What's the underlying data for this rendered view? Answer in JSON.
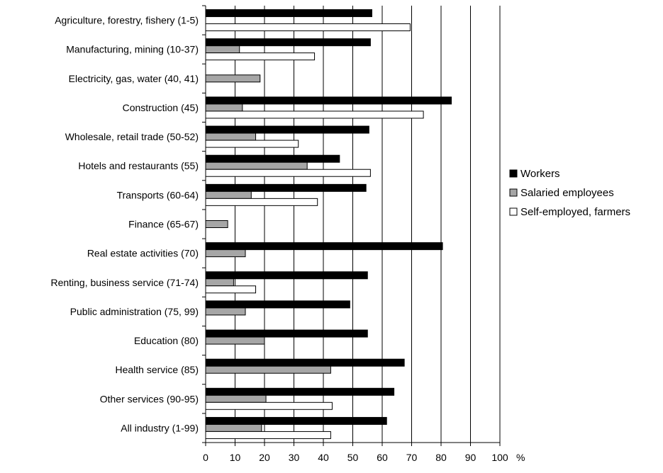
{
  "chart_data": {
    "type": "bar",
    "orientation": "horizontal",
    "categories": [
      "Agriculture, forestry, fishery (1-5)",
      "Manufacturing, mining (10-37)",
      "Electricity, gas, water (40, 41)",
      "Construction (45)",
      "Wholesale, retail trade (50-52)",
      "Hotels and restaurants (55)",
      "Transports (60-64)",
      "Finance (65-67)",
      "Real estate activities (70)",
      "Renting, business service (71-74)",
      "Public administration (75, 99)",
      "Education (80)",
      "Health service (85)",
      "Other services (90-95)",
      "All industry (1-99)"
    ],
    "series": [
      {
        "name": "Workers",
        "color": "#000000",
        "values": [
          56.5,
          56,
          null,
          83.5,
          55.5,
          45.5,
          54.5,
          null,
          80.5,
          55,
          49,
          55,
          67.5,
          64,
          61.5
        ]
      },
      {
        "name": "Salaried employees",
        "color": "#a6a6a6",
        "values": [
          null,
          11.5,
          18.5,
          12.5,
          17,
          34.5,
          15.5,
          7.5,
          13.5,
          9.5,
          13.5,
          20,
          42.5,
          20.5,
          19
        ]
      },
      {
        "name": "Self-employed, farmers",
        "color": "#ffffff",
        "values": [
          69.5,
          37,
          null,
          74,
          31.5,
          56,
          38,
          null,
          null,
          17,
          null,
          null,
          null,
          43,
          42.5
        ]
      }
    ],
    "x_ticks": [
      "0",
      "10",
      "20",
      "30",
      "40",
      "50",
      "60",
      "70",
      "80",
      "90",
      "100"
    ],
    "xlim": [
      0,
      100
    ],
    "x_unit": "%",
    "grid": true,
    "legend_position": "right"
  }
}
